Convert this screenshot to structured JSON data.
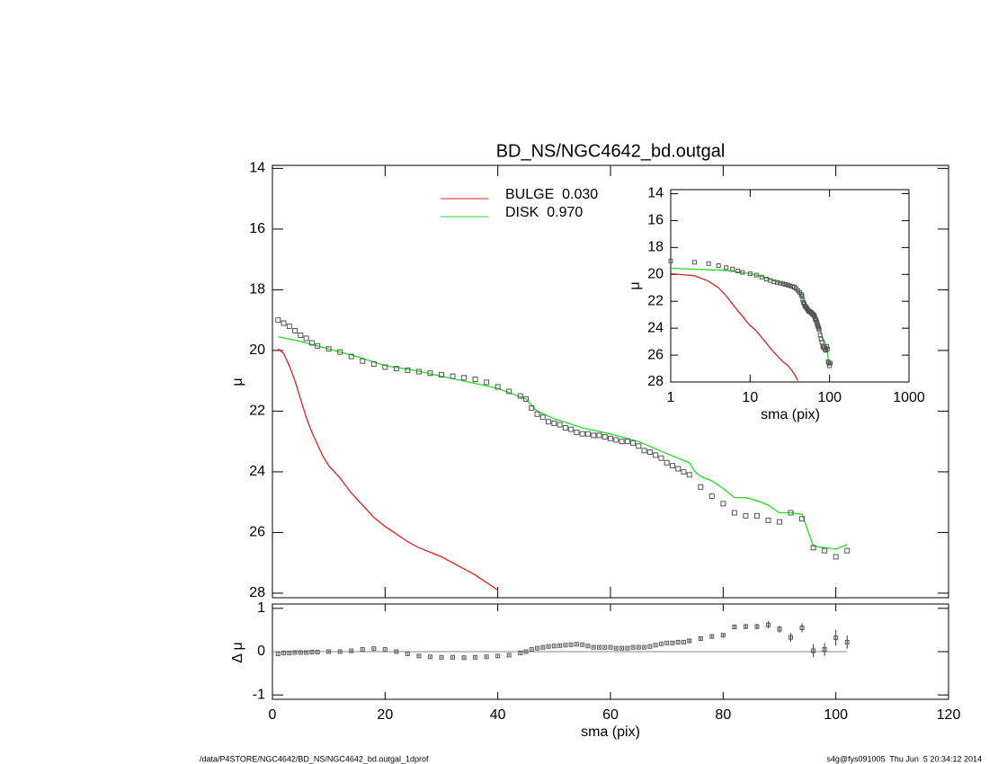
{
  "chart_data": [
    {
      "type": "line",
      "title": "BD_NS/NGC4642_bd.outgal",
      "ylabel": "μ",
      "xlim": [
        0,
        120
      ],
      "ylim": [
        28.15,
        13.9
      ],
      "yticks": [
        14,
        16,
        18,
        20,
        22,
        24,
        26,
        28
      ],
      "color": "#555555",
      "x": [
        1,
        2,
        3,
        4,
        5,
        6,
        7,
        8,
        10,
        12,
        14,
        16,
        18,
        20,
        22,
        24,
        26,
        28,
        30,
        32,
        34,
        36,
        38,
        40,
        42,
        44,
        45,
        46,
        47,
        48,
        49,
        50,
        51,
        52,
        53,
        54,
        55,
        56,
        57,
        58,
        59,
        60,
        61,
        62,
        63,
        64,
        65,
        66,
        67,
        68,
        69,
        70,
        71,
        72,
        73,
        74,
        76,
        78,
        80,
        82,
        84,
        86,
        88,
        90,
        92,
        94,
        96,
        98,
        100,
        102
      ],
      "values": [
        19.0,
        19.1,
        19.2,
        19.35,
        19.5,
        19.6,
        19.75,
        19.85,
        19.95,
        20.05,
        20.2,
        20.35,
        20.45,
        20.55,
        20.6,
        20.65,
        20.7,
        20.75,
        20.8,
        20.85,
        20.9,
        20.95,
        21.05,
        21.2,
        21.35,
        21.5,
        21.6,
        21.9,
        22.1,
        22.2,
        22.35,
        22.4,
        22.45,
        22.55,
        22.6,
        22.7,
        22.75,
        22.75,
        22.8,
        22.8,
        22.85,
        22.9,
        22.95,
        23.0,
        23.0,
        23.05,
        23.15,
        23.3,
        23.35,
        23.45,
        23.55,
        23.7,
        23.8,
        23.9,
        24.0,
        24.1,
        24.5,
        24.8,
        25.05,
        25.35,
        25.45,
        25.45,
        25.6,
        25.65,
        25.35,
        25.55,
        26.5,
        26.6,
        26.8,
        26.6
      ],
      "series": [
        {
          "name": "BULGE  0.030",
          "color": "#e02020",
          "x": [
            1,
            2,
            3,
            4,
            5,
            6,
            7,
            8,
            9,
            10,
            12,
            14,
            16,
            18,
            20,
            22,
            24,
            26,
            28,
            30,
            32,
            34,
            36,
            38,
            40
          ],
          "values": [
            19.95,
            20.1,
            20.5,
            21.0,
            21.6,
            22.2,
            22.7,
            23.1,
            23.5,
            23.8,
            24.2,
            24.7,
            25.1,
            25.5,
            25.8,
            26.05,
            26.3,
            26.5,
            26.65,
            26.8,
            27.0,
            27.2,
            27.4,
            27.65,
            27.9
          ]
        },
        {
          "name": "DISK  0.970",
          "color": "#22dd22",
          "x": [
            1,
            5,
            10,
            15,
            20,
            25,
            30,
            35,
            40,
            45,
            47,
            50,
            55,
            60,
            65,
            70,
            72,
            74,
            75,
            76,
            78,
            80,
            82,
            84,
            86,
            88,
            90,
            92,
            94,
            96,
            98,
            100,
            102
          ],
          "values": [
            19.55,
            19.7,
            19.95,
            20.2,
            20.5,
            20.65,
            20.85,
            21.05,
            21.25,
            21.6,
            22.0,
            22.25,
            22.55,
            22.75,
            23.0,
            23.4,
            23.55,
            23.7,
            24.0,
            24.15,
            24.3,
            24.55,
            24.85,
            24.85,
            24.95,
            25.1,
            25.35,
            25.35,
            25.4,
            26.45,
            26.5,
            26.55,
            26.4
          ]
        }
      ]
    },
    {
      "type": "scatter",
      "ylabel": "Δ μ",
      "xlabel": "sma (pix)",
      "xlim": [
        0,
        120
      ],
      "xticks": [
        0,
        20,
        40,
        60,
        80,
        100,
        120
      ],
      "ylim": [
        -1.1,
        1.1
      ],
      "yticks": [
        -1,
        0,
        1
      ],
      "color": "#555555",
      "values": [
        -0.05,
        -0.03,
        -0.03,
        -0.02,
        -0.02,
        -0.02,
        -0.01,
        -0.01,
        0,
        0,
        0.02,
        0.05,
        0.07,
        0.05,
        0,
        -0.05,
        -0.1,
        -0.12,
        -0.13,
        -0.13,
        -0.14,
        -0.13,
        -0.12,
        -0.1,
        -0.08,
        -0.03,
        0,
        0.05,
        0.08,
        0.1,
        0.12,
        0.13,
        0.14,
        0.15,
        0.16,
        0.17,
        0.16,
        0.13,
        0.1,
        0.1,
        0.1,
        0.1,
        0.08,
        0.08,
        0.08,
        0.1,
        0.1,
        0.1,
        0.12,
        0.15,
        0.18,
        0.2,
        0.2,
        0.22,
        0.22,
        0.25,
        0.3,
        0.35,
        0.38,
        0.57,
        0.58,
        0.58,
        0.62,
        0.52,
        0.33,
        0.55,
        0.02,
        0.05,
        0.32,
        0.22
      ],
      "errors": [
        0.02,
        0.02,
        0.02,
        0.02,
        0.02,
        0.02,
        0.02,
        0.02,
        0.02,
        0.02,
        0.02,
        0.02,
        0.02,
        0.02,
        0.02,
        0.02,
        0.02,
        0.02,
        0.02,
        0.02,
        0.02,
        0.02,
        0.02,
        0.02,
        0.02,
        0.02,
        0.02,
        0.02,
        0.02,
        0.02,
        0.02,
        0.02,
        0.02,
        0.02,
        0.02,
        0.02,
        0.02,
        0.02,
        0.02,
        0.02,
        0.02,
        0.02,
        0.02,
        0.02,
        0.02,
        0.02,
        0.02,
        0.02,
        0.02,
        0.02,
        0.02,
        0.02,
        0.02,
        0.02,
        0.02,
        0.03,
        0.03,
        0.03,
        0.04,
        0.05,
        0.06,
        0.06,
        0.08,
        0.08,
        0.1,
        0.1,
        0.15,
        0.15,
        0.18,
        0.15
      ]
    },
    {
      "type": "line",
      "xlabel": "sma (pix)",
      "ylabel": "μ",
      "log_x": true,
      "xlim": [
        1,
        1000
      ],
      "xticks": [
        1,
        10,
        100,
        1000
      ],
      "ylim": [
        28,
        13.7
      ],
      "yticks": [
        14,
        16,
        18,
        20,
        22,
        24,
        26,
        28
      ]
    }
  ],
  "footer": {
    "path": "/data/P4STORE/NGC4642/BD_NS/NGC4642_bd.outgal_1dprof",
    "stamp": "s4g@fys091005  Thu Jun  5 20:34:12 2014"
  }
}
